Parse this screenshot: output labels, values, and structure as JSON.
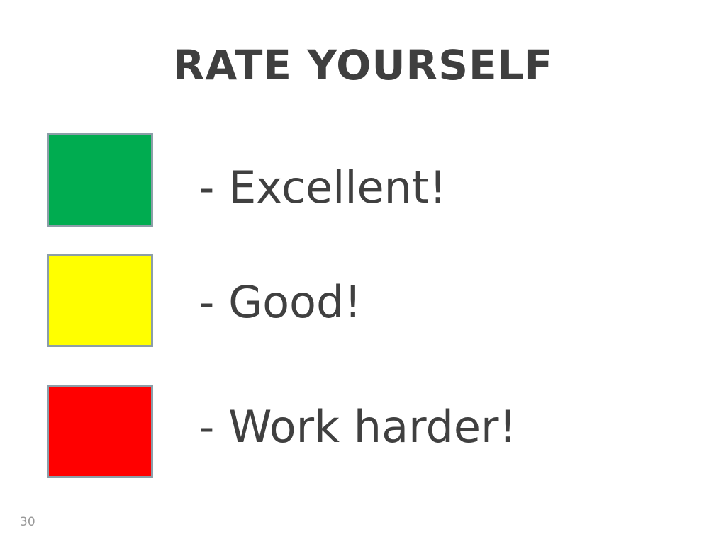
{
  "slide": {
    "title": "RATE YOURSELF",
    "page_number": "30",
    "text_color": "#404040",
    "swatch_border_color": "#8c9ea8",
    "items": [
      {
        "color_name": "green",
        "color": "#00ac50",
        "label": "- Excellent!"
      },
      {
        "color_name": "yellow",
        "color": "#ffff00",
        "label": "- Good!"
      },
      {
        "color_name": "red",
        "color": "#ff0000",
        "label": "- Work harder!"
      }
    ]
  }
}
